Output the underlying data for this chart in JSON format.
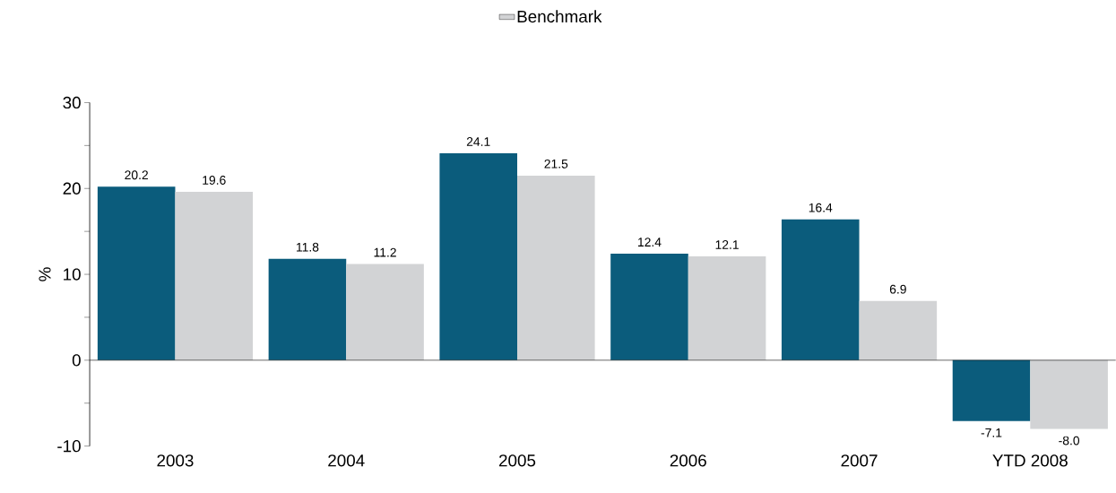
{
  "chart_data": {
    "type": "bar",
    "ylabel": "%",
    "categories": [
      "2003",
      "2004",
      "2005",
      "2006",
      "2007",
      "YTD 2008"
    ],
    "series": [
      {
        "color": "#0b5c7c",
        "values": [
          20.2,
          11.8,
          24.1,
          12.4,
          16.4,
          -7.1
        ],
        "value_labels": [
          "20.2",
          "11.8",
          "24.1",
          "12.4",
          "16.4",
          "-7.1"
        ]
      },
      {
        "name": "Benchmark",
        "color": "#d2d3d5",
        "values": [
          19.6,
          11.2,
          21.5,
          12.1,
          6.9,
          -8.0
        ],
        "value_labels": [
          "19.6",
          "11.2",
          "21.5",
          "12.1",
          "6.9",
          "-8.0"
        ]
      }
    ],
    "ylim": [
      -10,
      30
    ],
    "yticks": [
      -10,
      {
        "value": -5,
        "label": null
      },
      0,
      {
        "value": 5,
        "label": null
      },
      10,
      {
        "value": 15,
        "label": null
      },
      20,
      {
        "value": 25,
        "label": null
      },
      30
    ],
    "legend": "top"
  }
}
